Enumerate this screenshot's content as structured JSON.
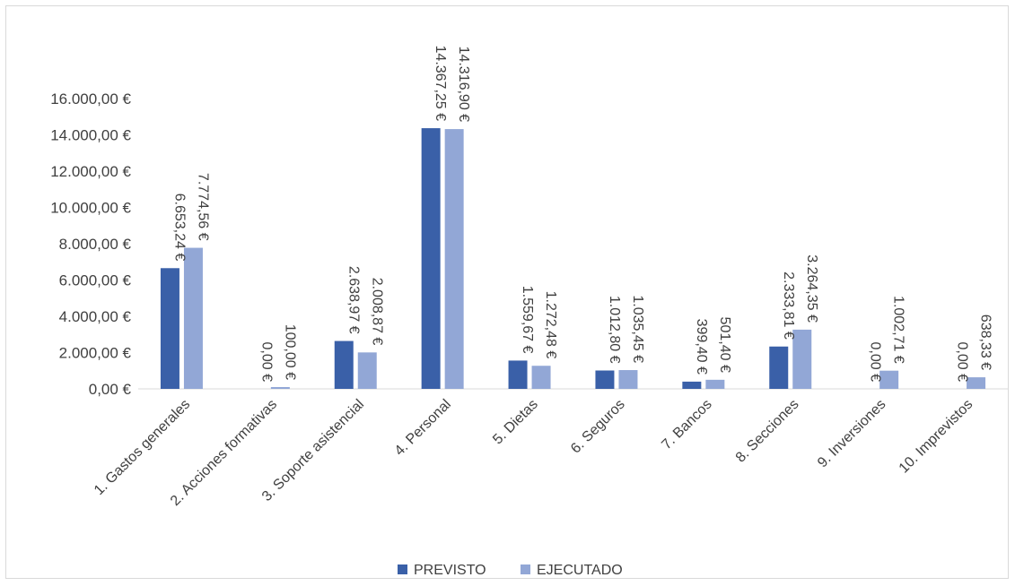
{
  "chart_data": {
    "type": "bar",
    "title": "",
    "xlabel": "",
    "ylabel": "",
    "ylim": [
      0,
      16000
    ],
    "ytick_step": 2000,
    "yticks": [
      "0,00 €",
      "2.000,00 €",
      "4.000,00 €",
      "6.000,00 €",
      "8.000,00 €",
      "10.000,00 €",
      "12.000,00 €",
      "14.000,00 €",
      "16.000,00 €"
    ],
    "grid": false,
    "legend_position": "bottom",
    "categories": [
      "1. Gastos generales",
      "2. Acciones formativas",
      "3. Soporte asistencial",
      "4. Personal",
      "5. Dietas",
      "6. Seguros",
      "7. Bancos",
      "8. Secciones",
      "9. Inversiones",
      "10. Imprevistos"
    ],
    "series": [
      {
        "name": "PREVISTO",
        "color": "#3a60a8",
        "values": [
          6653.24,
          0,
          2638.97,
          14367.25,
          1559.67,
          1012.8,
          399.4,
          2333.81,
          0,
          0
        ],
        "labels": [
          "6.653,24 €",
          "0,00 €",
          "2.638,97 €",
          "14.367,25 €",
          "1.559,67 €",
          "1.012,80 €",
          "399,40 €",
          "2.333,81 €",
          "0,00 €",
          "0,00 €"
        ]
      },
      {
        "name": "EJECUTADO",
        "color": "#92a7d6",
        "values": [
          7774.56,
          100.0,
          2008.87,
          14316.9,
          1272.48,
          1035.45,
          501.4,
          3264.35,
          1002.71,
          638.33
        ],
        "labels": [
          "7.774,56 €",
          "100,00 €",
          "2.008,87 €",
          "14.316,90 €",
          "1.272,48 €",
          "1.035,45 €",
          "501,40 €",
          "3.264,35 €",
          "1.002,71 €",
          "638,33 €"
        ]
      }
    ]
  }
}
